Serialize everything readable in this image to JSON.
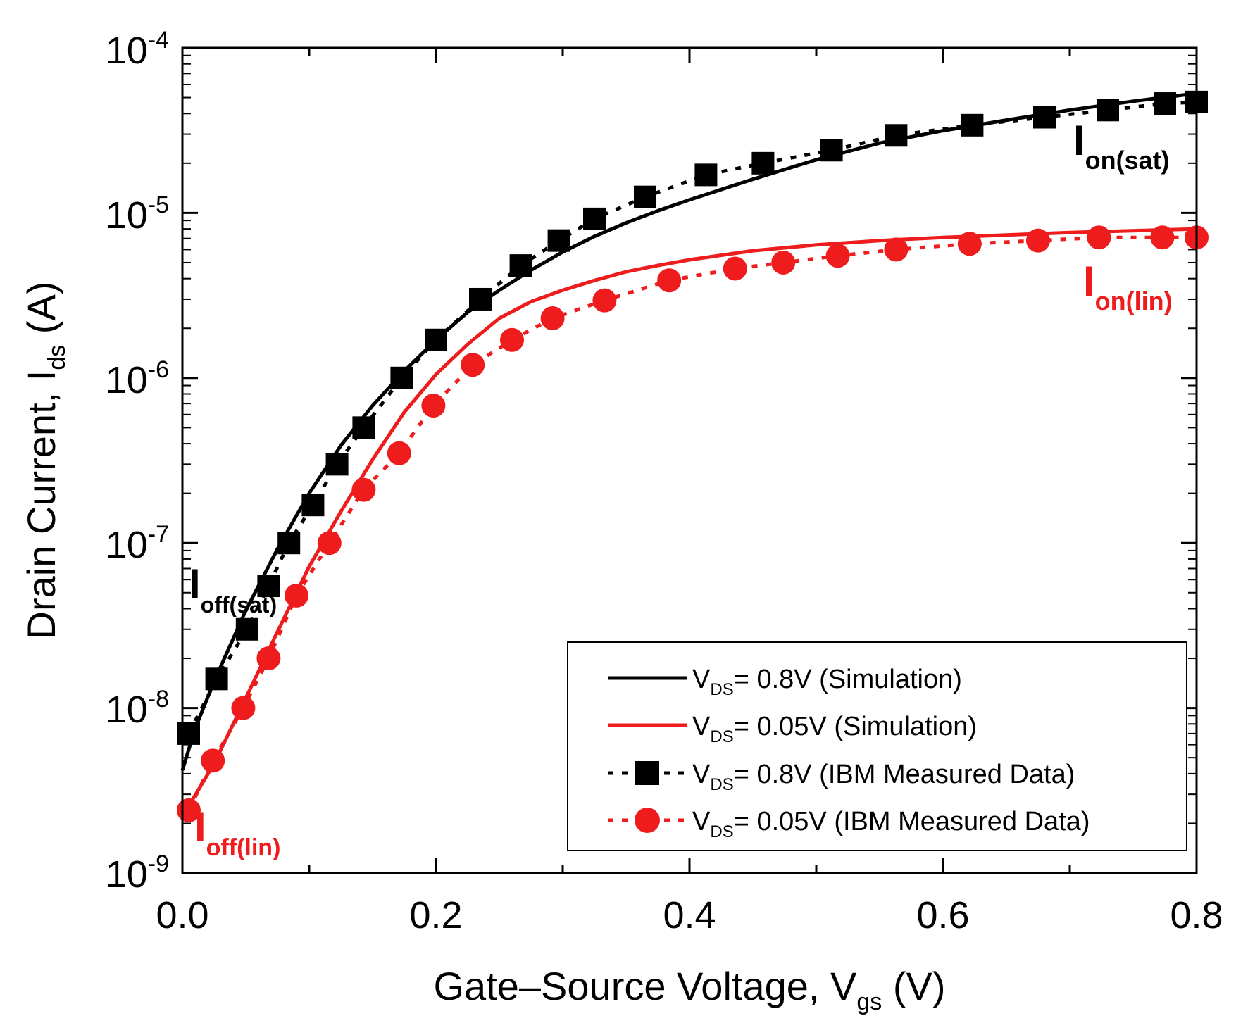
{
  "chart_data": {
    "type": "line",
    "scale": {
      "x": "linear",
      "y": "log"
    },
    "xlim": [
      0.0,
      0.8
    ],
    "ylim": [
      1e-09,
      0.0001
    ],
    "x_ticks": [
      "0.0",
      "0.2",
      "0.4",
      "0.6",
      "0.8"
    ],
    "y_ticks": [
      {
        "base": "10",
        "exp": "-4"
      },
      {
        "base": "10",
        "exp": "-5"
      },
      {
        "base": "10",
        "exp": "-6"
      },
      {
        "base": "10",
        "exp": "-7"
      },
      {
        "base": "10",
        "exp": "-8"
      },
      {
        "base": "10",
        "exp": "-9"
      }
    ],
    "xlabel": {
      "main": "Gate–Source Voltage, V",
      "sub": "gs",
      "unit": " (V)"
    },
    "ylabel": {
      "main": "Drain Current, I",
      "sub": "ds",
      "unit": " (A)"
    },
    "colors": {
      "sat": "#000000",
      "lin": "#ee1c1c"
    },
    "series": [
      {
        "name": "VDS= 0.8V (Simulation)",
        "kind": "line",
        "color": "#000000",
        "x": [
          0.0,
          0.01,
          0.025,
          0.05,
          0.075,
          0.1,
          0.125,
          0.15,
          0.175,
          0.2,
          0.225,
          0.25,
          0.275,
          0.3,
          0.325,
          0.35,
          0.375,
          0.4,
          0.45,
          0.5,
          0.55,
          0.6,
          0.65,
          0.7,
          0.75,
          0.8
        ],
        "y": [
          4.2e-09,
          7.5e-09,
          1.45e-08,
          3.9e-08,
          9.2e-08,
          2e-07,
          3.9e-07,
          6.8e-07,
          1.1e-06,
          1.7e-06,
          2.5e-06,
          3.4e-06,
          4.5e-06,
          5.8e-06,
          7.2e-06,
          8.7e-06,
          1.03e-05,
          1.2e-05,
          1.6e-05,
          2.1e-05,
          2.65e-05,
          3.15e-05,
          3.65e-05,
          4.2e-05,
          4.75e-05,
          5.3e-05
        ]
      },
      {
        "name": "VDS= 0.05V (Simulation)",
        "kind": "line",
        "color": "#ee1c1c",
        "x": [
          0.0,
          0.025,
          0.05,
          0.075,
          0.1,
          0.125,
          0.15,
          0.175,
          0.2,
          0.225,
          0.25,
          0.275,
          0.3,
          0.325,
          0.35,
          0.375,
          0.4,
          0.45,
          0.5,
          0.55,
          0.6,
          0.7,
          0.8
        ],
        "y": [
          2.2e-09,
          4.6e-09,
          1.15e-08,
          2.9e-08,
          7.2e-08,
          1.55e-07,
          3.2e-07,
          6.2e-07,
          1.05e-06,
          1.6e-06,
          2.3e-06,
          2.9e-06,
          3.4e-06,
          3.9e-06,
          4.4e-06,
          4.8e-06,
          5.2e-06,
          5.9e-06,
          6.4e-06,
          6.8e-06,
          7.1e-06,
          7.6e-06,
          8e-06
        ]
      },
      {
        "name": "VDS= 0.8V (IBM Measured Data)",
        "kind": "dotted-squares",
        "color": "#000000",
        "x": [
          0.005,
          0.027,
          0.051,
          0.068,
          0.084,
          0.103,
          0.122,
          0.143,
          0.173,
          0.2,
          0.235,
          0.267,
          0.297,
          0.325,
          0.365,
          0.413,
          0.458,
          0.512,
          0.563,
          0.623,
          0.68,
          0.73,
          0.775,
          0.8
        ],
        "y": [
          7e-09,
          1.5e-08,
          3e-08,
          5.5e-08,
          1e-07,
          1.7e-07,
          3e-07,
          5e-07,
          1e-06,
          1.7e-06,
          3e-06,
          4.8e-06,
          6.8e-06,
          9.2e-06,
          1.25e-05,
          1.7e-05,
          2e-05,
          2.4e-05,
          2.95e-05,
          3.4e-05,
          3.8e-05,
          4.2e-05,
          4.6e-05,
          4.7e-05
        ]
      },
      {
        "name": "VDS= 0.05V (IBM Measured Data)",
        "kind": "dotted-circles",
        "color": "#ee1c1c",
        "x": [
          0.005,
          0.024,
          0.048,
          0.068,
          0.09,
          0.116,
          0.143,
          0.171,
          0.198,
          0.229,
          0.26,
          0.292,
          0.333,
          0.384,
          0.436,
          0.474,
          0.517,
          0.563,
          0.621,
          0.675,
          0.723,
          0.773,
          0.8
        ],
        "y": [
          2.4e-09,
          4.8e-09,
          1e-08,
          2e-08,
          4.8e-08,
          1e-07,
          2.1e-07,
          3.5e-07,
          6.8e-07,
          1.2e-06,
          1.7e-06,
          2.3e-06,
          2.95e-06,
          3.9e-06,
          4.6e-06,
          5e-06,
          5.5e-06,
          6e-06,
          6.5e-06,
          6.8e-06,
          7.1e-06,
          7.1e-06,
          7.1e-06
        ]
      }
    ],
    "legend": [
      {
        "key": "sat-sim",
        "v": "V",
        "sub": "DS",
        "text": "= 0.8V (Simulation)"
      },
      {
        "key": "lin-sim",
        "v": "V",
        "sub": "DS",
        "text": "= 0.05V (Simulation)"
      },
      {
        "key": "sat-meas",
        "v": "V",
        "sub": "DS",
        "text": "= 0.8V (IBM Measured Data)"
      },
      {
        "key": "lin-meas",
        "v": "V",
        "sub": "DS",
        "text": "= 0.05V (IBM Measured Data)"
      }
    ],
    "legend_position": "bottom-right",
    "annotations": [
      {
        "id": "on-sat",
        "main": "I",
        "sub": "on(sat)",
        "color": "#000000"
      },
      {
        "id": "on-lin",
        "main": "I",
        "sub": "on(lin)",
        "color": "#ee1c1c"
      },
      {
        "id": "off-sat",
        "main": "I",
        "sub": "off(sat)",
        "color": "#000000"
      },
      {
        "id": "off-lin",
        "main": "I",
        "sub": "off(lin)",
        "color": "#ee1c1c"
      }
    ]
  }
}
